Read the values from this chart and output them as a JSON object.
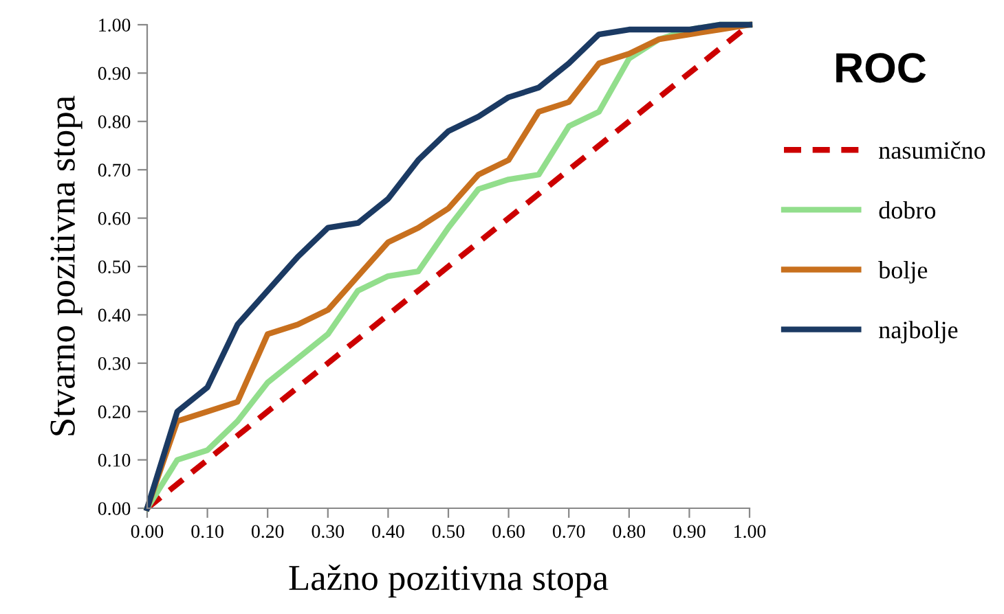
{
  "chart_data": {
    "type": "line",
    "title": "ROC",
    "xlabel": "Lažno pozitivna stopa",
    "ylabel": "Stvarno pozitivna stopa",
    "x": [
      0,
      0.05,
      0.1,
      0.15,
      0.2,
      0.25,
      0.3,
      0.35,
      0.4,
      0.45,
      0.5,
      0.55,
      0.6,
      0.65,
      0.7,
      0.75,
      0.8,
      0.85,
      0.9,
      0.95,
      1.0
    ],
    "series": [
      {
        "name": "nasumično",
        "color": "#cc0000",
        "line_style": "dashed",
        "x": [
          0,
          1
        ],
        "values": [
          0,
          1
        ]
      },
      {
        "name": "dobro",
        "color": "#92de8c",
        "values": [
          0,
          0.1,
          0.12,
          0.18,
          0.26,
          0.31,
          0.36,
          0.45,
          0.48,
          0.49,
          0.58,
          0.66,
          0.68,
          0.69,
          0.79,
          0.82,
          0.93,
          0.97,
          0.99,
          1.0,
          1.0
        ]
      },
      {
        "name": "bolje",
        "color": "#c8701e",
        "values": [
          0,
          0.18,
          0.2,
          0.22,
          0.36,
          0.38,
          0.41,
          0.48,
          0.55,
          0.58,
          0.62,
          0.69,
          0.72,
          0.82,
          0.84,
          0.92,
          0.94,
          0.97,
          0.98,
          0.99,
          1.0
        ]
      },
      {
        "name": "najbolje",
        "color": "#1b3a63",
        "values": [
          0,
          0.2,
          0.25,
          0.38,
          0.45,
          0.52,
          0.58,
          0.59,
          0.64,
          0.72,
          0.78,
          0.81,
          0.85,
          0.87,
          0.92,
          0.98,
          0.99,
          0.99,
          0.99,
          1.0,
          1.0
        ]
      }
    ],
    "xlim": [
      0,
      1
    ],
    "ylim": [
      0,
      1
    ],
    "xticks": [
      {
        "value": 0,
        "label": "0.00"
      },
      {
        "value": 0.1,
        "label": "0.10"
      },
      {
        "value": 0.2,
        "label": "0.20"
      },
      {
        "value": 0.3,
        "label": "0.30"
      },
      {
        "value": 0.4,
        "label": "0.40"
      },
      {
        "value": 0.5,
        "label": "0.50"
      },
      {
        "value": 0.6,
        "label": "0.60"
      },
      {
        "value": 0.7,
        "label": "0.70"
      },
      {
        "value": 0.8,
        "label": "0.80"
      },
      {
        "value": 0.9,
        "label": "0.90"
      },
      {
        "value": 1,
        "label": "1.00"
      }
    ],
    "yticks": [
      {
        "value": 0,
        "label": "0.00"
      },
      {
        "value": 0.1,
        "label": "0.10"
      },
      {
        "value": 0.2,
        "label": "0.20"
      },
      {
        "value": 0.3,
        "label": "0.30"
      },
      {
        "value": 0.4,
        "label": "0.40"
      },
      {
        "value": 0.5,
        "label": "0.50"
      },
      {
        "value": 0.6,
        "label": "0.60"
      },
      {
        "value": 0.7,
        "label": "0.70"
      },
      {
        "value": 0.8,
        "label": "0.80"
      },
      {
        "value": 0.9,
        "label": "0.90"
      },
      {
        "value": 1,
        "label": "1.00"
      }
    ],
    "grid": false,
    "legend": "right",
    "line_style": "solid",
    "marker": "none"
  }
}
